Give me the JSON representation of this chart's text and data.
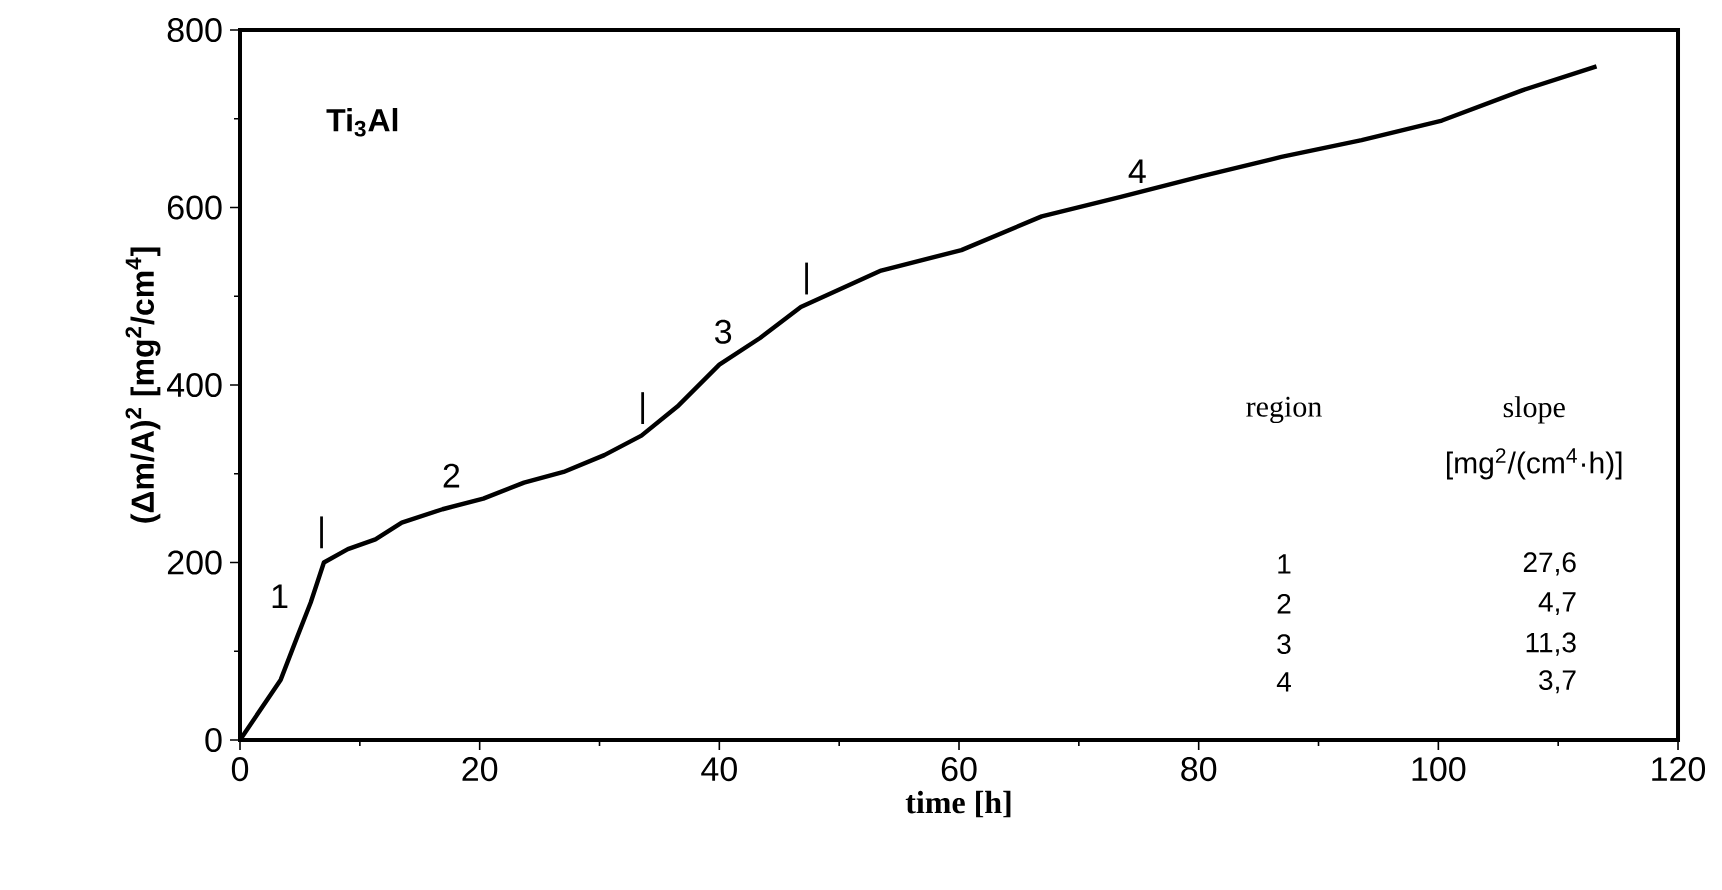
{
  "chart_data": {
    "type": "line",
    "title": "Ti$_{3}$Al",
    "xlabel": "time [h]",
    "ylabel": "(Δm/A)$^{2}$ [mg$^{2}$/cm$^{4}$]",
    "xlim": [
      0,
      120
    ],
    "ylim": [
      0,
      800
    ],
    "xticks": [
      0,
      20,
      40,
      60,
      80,
      100,
      120
    ],
    "yticks": [
      0,
      200,
      400,
      600,
      800
    ],
    "marker": "none",
    "line_style": "solid",
    "grid": false,
    "x": [
      0,
      3.4,
      4.8,
      5.9,
      7.0,
      9.0,
      11.3,
      13.5,
      16.9,
      20.3,
      23.7,
      27,
      30.4,
      33.5,
      36.6,
      40,
      43.4,
      46.8,
      53.5,
      60.2,
      66.9,
      73.5,
      80.2,
      86.9,
      93.6,
      100.3,
      107,
      113.2
    ],
    "series": [
      {
        "color": "#000000",
        "values": [
          0,
          68,
          117,
          155,
          200,
          215,
          226,
          245,
          260,
          272,
          290,
          302,
          321,
          343,
          377,
          423,
          453,
          488,
          529,
          552,
          590,
          612,
          635,
          657,
          676,
          698,
          732,
          759
        ]
      }
    ],
    "annotations": [
      "1",
      "2",
      "3",
      "4",
      "|",
      "|",
      "|",
      "region",
      "slope",
      "[mg$^{2}$/(cm$^{4}$·h)]",
      "1",
      "27,6",
      "2",
      "4,7",
      "3",
      "11,3",
      "4",
      "3,7"
    ]
  }
}
